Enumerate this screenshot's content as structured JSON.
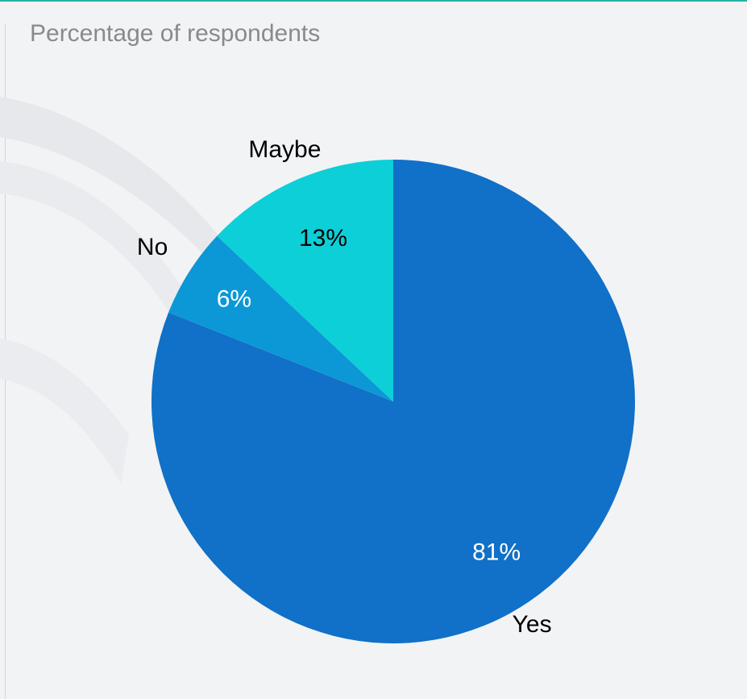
{
  "chart_data": {
    "type": "pie",
    "title": "Percentage of respondents",
    "start": "top, clockwise",
    "slices": [
      {
        "label": "Yes",
        "value": 81,
        "value_label": "81%",
        "color": "#1170c7",
        "value_label_color": "#ffffff"
      },
      {
        "label": "No",
        "value": 6,
        "value_label": "6%",
        "color": "#0c98d6",
        "value_label_color": "#ffffff"
      },
      {
        "label": "Maybe",
        "value": 13,
        "value_label": "13%",
        "color": "#0dcfd8",
        "value_label_color": "#000000"
      }
    ]
  }
}
